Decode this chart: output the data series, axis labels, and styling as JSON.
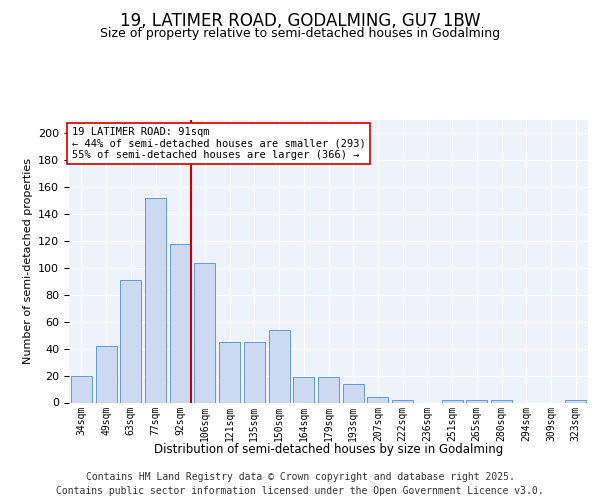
{
  "title": "19, LATIMER ROAD, GODALMING, GU7 1BW",
  "subtitle": "Size of property relative to semi-detached houses in Godalming",
  "xlabel": "Distribution of semi-detached houses by size in Godalming",
  "ylabel": "Number of semi-detached properties",
  "categories": [
    "34sqm",
    "49sqm",
    "63sqm",
    "77sqm",
    "92sqm",
    "106sqm",
    "121sqm",
    "135sqm",
    "150sqm",
    "164sqm",
    "179sqm",
    "193sqm",
    "207sqm",
    "222sqm",
    "236sqm",
    "251sqm",
    "265sqm",
    "280sqm",
    "294sqm",
    "309sqm",
    "323sqm"
  ],
  "values": [
    20,
    42,
    91,
    152,
    118,
    104,
    45,
    45,
    54,
    19,
    19,
    14,
    4,
    2,
    0,
    2,
    2,
    2,
    0,
    0,
    2
  ],
  "bar_color": "#ccd9f0",
  "bar_edge_color": "#6699cc",
  "vline_x_idx": 4,
  "vline_color": "#cc0000",
  "annotation_title": "19 LATIMER ROAD: 91sqm",
  "annotation_line1": "← 44% of semi-detached houses are smaller (293)",
  "annotation_line2": "55% of semi-detached houses are larger (366) →",
  "annotation_box_color": "#ffffff",
  "annotation_box_edge": "#cc0000",
  "ylim": [
    0,
    210
  ],
  "yticks": [
    0,
    20,
    40,
    60,
    80,
    100,
    120,
    140,
    160,
    180,
    200
  ],
  "footer_line1": "Contains HM Land Registry data © Crown copyright and database right 2025.",
  "footer_line2": "Contains public sector information licensed under the Open Government Licence v3.0.",
  "bg_color": "#eef2fb",
  "title_fontsize": 12,
  "subtitle_fontsize": 9,
  "footer_fontsize": 7
}
